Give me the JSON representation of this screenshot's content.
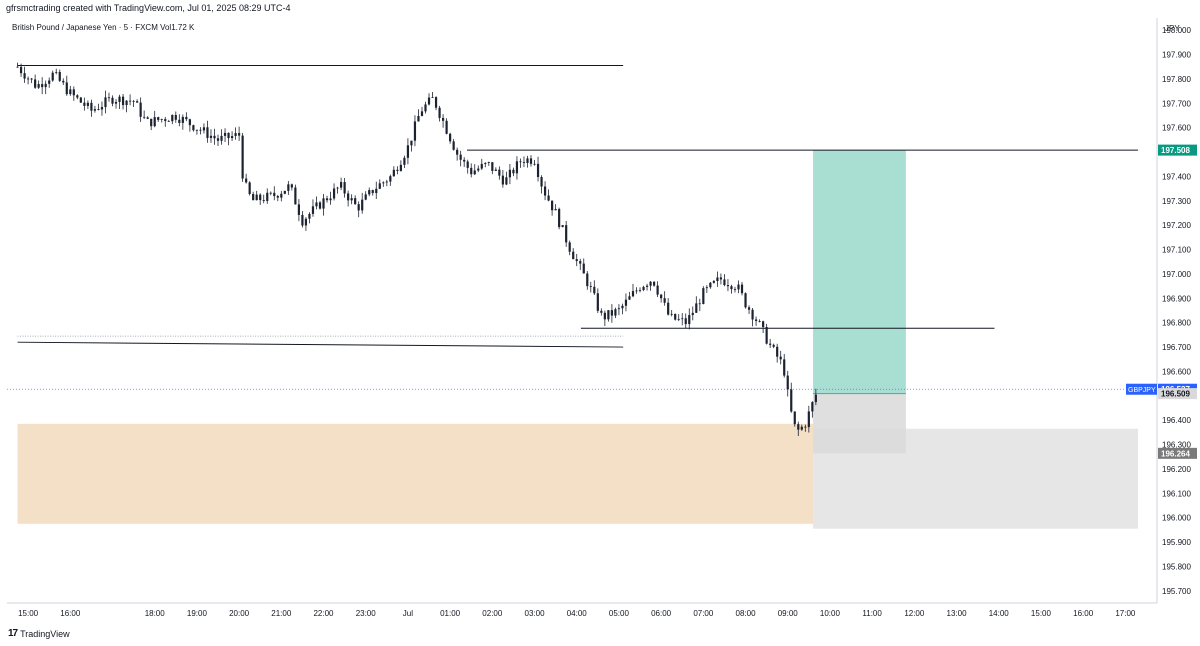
{
  "header": {
    "created_by": "gfrsmctrading created with TradingView.com, Jul 01, 2025 08:29 UTC-4"
  },
  "symbol_info": "British Pound / Japanese Yen · 5 · FXCM  Vol1.72 K",
  "footer": {
    "brand": "TradingView",
    "logo_icon": "tradingview-logo-icon"
  },
  "chart_data": {
    "type": "candlestick",
    "currency_label": "JPY",
    "ylim": [
      195.65,
      198.05
    ],
    "y_ticks": [
      "198.000",
      "197.900",
      "197.800",
      "197.700",
      "197.600",
      "197.400",
      "197.300",
      "197.200",
      "197.100",
      "197.000",
      "196.900",
      "196.800",
      "196.700",
      "196.600",
      "196.400",
      "196.300",
      "196.200",
      "196.100",
      "196.000",
      "195.900",
      "195.800",
      "195.700"
    ],
    "x_ticks": [
      "15:00",
      "16:00",
      "18:00",
      "19:00",
      "20:00",
      "21:00",
      "22:00",
      "23:00",
      "Jul",
      "01:00",
      "02:00",
      "03:00",
      "04:00",
      "05:00",
      "06:00",
      "07:00",
      "08:00",
      "09:00",
      "10:00",
      "11:00",
      "12:00",
      "13:00",
      "14:00",
      "15:00",
      "16:00",
      "17:00"
    ],
    "price_path_hours": [
      [
        14.75,
        197.85
      ],
      [
        15.2,
        197.77
      ],
      [
        15.6,
        197.82
      ],
      [
        16.0,
        197.74
      ],
      [
        16.5,
        197.67
      ],
      [
        17.0,
        197.72
      ],
      [
        17.5,
        197.71
      ],
      [
        17.8,
        197.62
      ],
      [
        18.5,
        197.65
      ],
      [
        19.0,
        197.6
      ],
      [
        19.5,
        197.55
      ],
      [
        20.0,
        197.57
      ],
      [
        20.1,
        197.38
      ],
      [
        20.3,
        197.3
      ],
      [
        20.8,
        197.32
      ],
      [
        21.2,
        197.36
      ],
      [
        21.5,
        197.22
      ],
      [
        22.0,
        197.3
      ],
      [
        22.4,
        197.36
      ],
      [
        22.8,
        197.27
      ],
      [
        23.2,
        197.35
      ],
      [
        23.6,
        197.4
      ],
      [
        24.0,
        197.52
      ],
      [
        24.3,
        197.67
      ],
      [
        24.6,
        197.72
      ],
      [
        24.9,
        197.6
      ],
      [
        25.2,
        197.48
      ],
      [
        25.5,
        197.42
      ],
      [
        25.9,
        197.45
      ],
      [
        26.3,
        197.38
      ],
      [
        26.7,
        197.47
      ],
      [
        27.0,
        197.47
      ],
      [
        27.2,
        197.35
      ],
      [
        27.5,
        197.25
      ],
      [
        27.8,
        197.12
      ],
      [
        28.0,
        197.05
      ],
      [
        28.3,
        196.95
      ],
      [
        28.6,
        196.82
      ],
      [
        29.0,
        196.85
      ],
      [
        29.5,
        196.95
      ],
      [
        29.8,
        196.98
      ],
      [
        30.2,
        196.82
      ],
      [
        30.6,
        196.8
      ],
      [
        31.0,
        196.92
      ],
      [
        31.4,
        196.98
      ],
      [
        31.8,
        196.95
      ],
      [
        32.0,
        196.88
      ],
      [
        32.3,
        196.8
      ],
      [
        32.6,
        196.7
      ],
      [
        32.9,
        196.62
      ],
      [
        33.05,
        196.45
      ],
      [
        33.2,
        196.35
      ],
      [
        33.4,
        196.38
      ],
      [
        33.55,
        196.45
      ],
      [
        33.7,
        196.52
      ]
    ],
    "horizontal_lines": [
      {
        "from_hour": 14.75,
        "to_hour": 29.1,
        "price": 197.855
      },
      {
        "from_hour": 25.4,
        "to_hour": 41.3,
        "price": 197.508
      },
      {
        "from_hour": 28.1,
        "to_hour": 37.9,
        "price": 196.777
      }
    ],
    "sloped_line": {
      "from": [
        14.75,
        196.72
      ],
      "to": [
        29.1,
        196.7
      ]
    },
    "dotted_line": {
      "from_hour": 14.75,
      "to_hour": 29.1,
      "price": 196.745
    },
    "demand_zone": {
      "from_hour": 14.75,
      "to_hour": 33.6,
      "top": 196.385,
      "bottom": 195.975,
      "color": "#f3e0c6"
    },
    "grey_zone": {
      "from_hour": 33.6,
      "to_hour": 41.3,
      "top": 196.365,
      "bottom": 195.955,
      "color": "#e6e6e6"
    },
    "long_position": {
      "from_hour": 33.6,
      "to_hour": 35.8,
      "target": 197.508,
      "entry": 196.509,
      "stop": 196.264,
      "profit_color": "#a8dfd2",
      "loss_color": "#d9d9d9"
    },
    "price_tags": {
      "target": {
        "label": "197.508",
        "price": 197.508,
        "color": "#089981"
      },
      "symbol": {
        "label": "GBPJPY",
        "value": "196.527",
        "price": 196.527,
        "color": "#2962ff"
      },
      "entry": {
        "label": "196.509",
        "price": 196.509,
        "color": "#d9d9d9"
      },
      "stop": {
        "label": "196.264",
        "price": 196.264,
        "color": "#7a7a7a"
      }
    },
    "colors": {
      "candle": "#1c2230",
      "line": "#131722"
    }
  }
}
